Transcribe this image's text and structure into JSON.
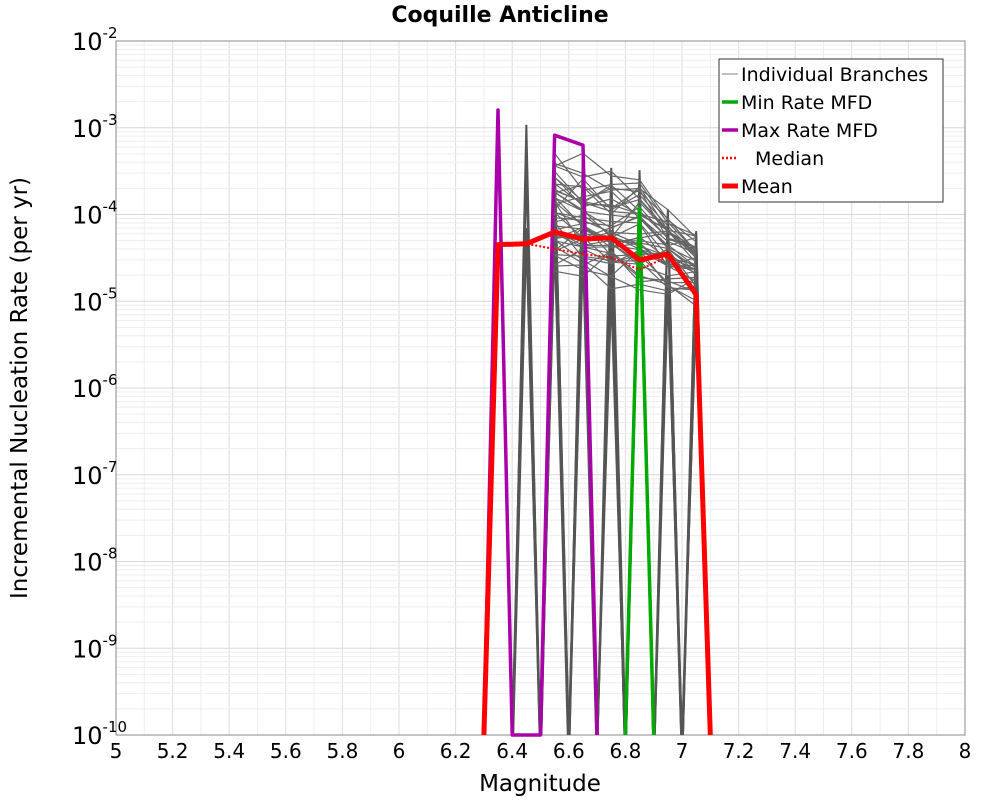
{
  "chart_data": {
    "type": "line",
    "title": "Coquille Anticline",
    "xlabel": "Magnitude",
    "ylabel": "Incremental Nucleation Rate (per yr)",
    "xlim": [
      5,
      8
    ],
    "ylim": [
      1e-10,
      0.01
    ],
    "yscale": "log",
    "x_ticks": [
      "5",
      "5.2",
      "5.4",
      "5.6",
      "5.8",
      "6",
      "6.2",
      "6.4",
      "6.6",
      "6.8",
      "7",
      "7.2",
      "7.4",
      "7.6",
      "7.8",
      "8"
    ],
    "y_ticks": [
      {
        "base": "10",
        "exp": "-10"
      },
      {
        "base": "10",
        "exp": "-9"
      },
      {
        "base": "10",
        "exp": "-8"
      },
      {
        "base": "10",
        "exp": "-7"
      },
      {
        "base": "10",
        "exp": "-6"
      },
      {
        "base": "10",
        "exp": "-5"
      },
      {
        "base": "10",
        "exp": "-4"
      },
      {
        "base": "10",
        "exp": "-3"
      },
      {
        "base": "10",
        "exp": "-2"
      }
    ],
    "grid": true,
    "legend_position": "top-right",
    "series": [
      {
        "name": "Individual Branches",
        "color": "#808080",
        "style": "thin",
        "x": [
          6.45,
          6.55,
          6.65,
          6.75,
          6.85,
          6.95,
          7.05
        ],
        "band_low": [
          3e-05,
          1.8e-05,
          1.5e-05,
          1.2e-05,
          1.2e-05,
          1e-05,
          8e-06
        ],
        "band_high": [
          0.0011,
          0.00065,
          0.00063,
          0.00042,
          0.00038,
          0.00017,
          0.0001
        ]
      },
      {
        "name": "Min Rate MFD",
        "color": "#00aa00",
        "style": "solid",
        "x": [
          6.8,
          6.85,
          6.9
        ],
        "y": [
          1e-10,
          0.00012,
          1e-10
        ]
      },
      {
        "name": "Max Rate MFD",
        "color": "#aa00aa",
        "style": "solid",
        "x": [
          6.3,
          6.35,
          6.4,
          6.5,
          6.55,
          6.65,
          6.7
        ],
        "y": [
          1e-10,
          0.0016,
          1e-10,
          1e-10,
          0.00082,
          0.00063,
          1e-10
        ]
      },
      {
        "name": "Median",
        "color": "#ff0000",
        "style": "dotted",
        "x": [
          6.3,
          6.35,
          6.45,
          6.55,
          6.65,
          6.75,
          6.85,
          6.95,
          7.05,
          7.1
        ],
        "y": [
          1e-10,
          4.5e-05,
          4.6e-05,
          4e-05,
          3.5e-05,
          3.2e-05,
          2.3e-05,
          3.3e-05,
          1.1e-05,
          1e-10
        ]
      },
      {
        "name": "Mean",
        "color": "#ff0000",
        "style": "thick",
        "x": [
          6.3,
          6.35,
          6.45,
          6.55,
          6.65,
          6.75,
          6.85,
          6.95,
          7.05,
          7.1
        ],
        "y": [
          1e-10,
          4.5e-05,
          4.6e-05,
          6.3e-05,
          5.2e-05,
          5.4e-05,
          3e-05,
          3.5e-05,
          1.2e-05,
          1e-10
        ]
      }
    ]
  }
}
